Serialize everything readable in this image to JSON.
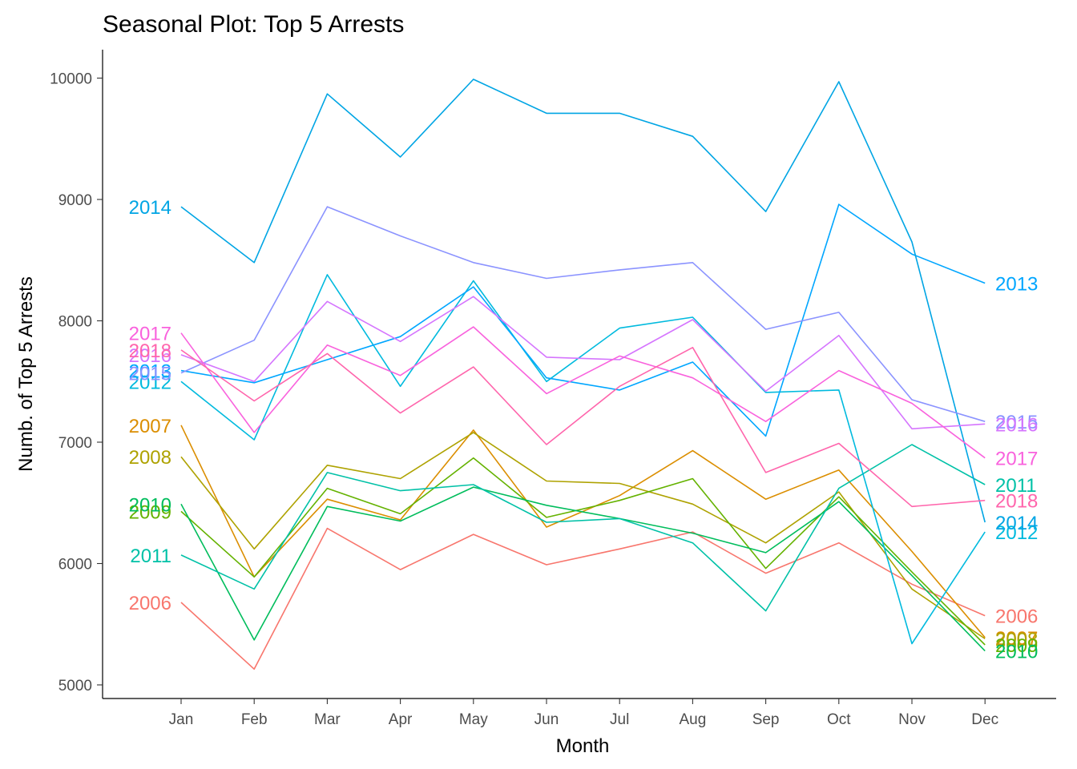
{
  "chart_data": {
    "type": "line",
    "title": "Seasonal Plot: Top 5 Arrests",
    "xlabel": "Month",
    "ylabel": "Numb. of Top 5 Arrests",
    "categories": [
      "Jan",
      "Feb",
      "Mar",
      "Apr",
      "May",
      "Jun",
      "Jul",
      "Aug",
      "Sep",
      "Oct",
      "Nov",
      "Dec"
    ],
    "ylim": [
      4900,
      10230
    ],
    "yticks": [
      5000,
      6000,
      7000,
      8000,
      9000,
      10000
    ],
    "grid": false,
    "legend": "none",
    "series": [
      {
        "name": "2006",
        "color": "#F8766D",
        "values": [
          5680,
          5130,
          6290,
          5950,
          6240,
          5990,
          6120,
          6260,
          5920,
          6170,
          5830,
          5570
        ]
      },
      {
        "name": "2007",
        "color": "#DB8E00",
        "values": [
          7140,
          5890,
          6530,
          6360,
          7100,
          6300,
          6560,
          6930,
          6530,
          6770,
          6100,
          5390
        ]
      },
      {
        "name": "2008",
        "color": "#AEA200",
        "values": [
          6880,
          6120,
          6810,
          6700,
          7080,
          6680,
          6660,
          6490,
          6170,
          6590,
          5790,
          5380
        ]
      },
      {
        "name": "2009",
        "color": "#64B200",
        "values": [
          6430,
          5890,
          6620,
          6410,
          6870,
          6380,
          6520,
          6700,
          5960,
          6550,
          5930,
          5330
        ]
      },
      {
        "name": "2010",
        "color": "#00BD5C",
        "values": [
          6490,
          5370,
          6470,
          6350,
          6630,
          6480,
          6370,
          6250,
          6090,
          6510,
          5900,
          5280
        ]
      },
      {
        "name": "2011",
        "color": "#00C1A7",
        "values": [
          6070,
          5790,
          6750,
          6600,
          6650,
          6340,
          6370,
          6170,
          5610,
          6620,
          6980,
          6650
        ]
      },
      {
        "name": "2012",
        "color": "#00BADE",
        "values": [
          7500,
          7020,
          8380,
          7460,
          8330,
          7500,
          7940,
          8030,
          7410,
          7430,
          5340,
          6260
        ]
      },
      {
        "name": "2013",
        "color": "#00A6FF",
        "values": [
          7590,
          7490,
          7680,
          7870,
          8280,
          7530,
          7430,
          7660,
          7050,
          8960,
          8550,
          8310
        ]
      },
      {
        "name": "2014",
        "color": "#00A5E4",
        "values": [
          8940,
          8480,
          9870,
          9350,
          9990,
          9710,
          9710,
          9520,
          8900,
          9970,
          8650,
          6340
        ]
      },
      {
        "name": "2015",
        "color": "#8B93FF",
        "values": [
          7570,
          7840,
          8940,
          8700,
          8480,
          8350,
          8420,
          8480,
          7930,
          8070,
          7350,
          7170
        ]
      },
      {
        "name": "2016",
        "color": "#D575FE",
        "values": [
          7720,
          7500,
          8160,
          7830,
          8200,
          7700,
          7680,
          8010,
          7420,
          7880,
          7110,
          7150
        ]
      },
      {
        "name": "2017",
        "color": "#F962DD",
        "values": [
          7900,
          7080,
          7800,
          7550,
          7950,
          7400,
          7710,
          7530,
          7170,
          7590,
          7320,
          6870
        ]
      },
      {
        "name": "2018",
        "color": "#FF65AC",
        "values": [
          7760,
          7340,
          7730,
          7240,
          7620,
          6980,
          7460,
          7780,
          6750,
          6990,
          6470,
          6520
        ]
      }
    ]
  }
}
